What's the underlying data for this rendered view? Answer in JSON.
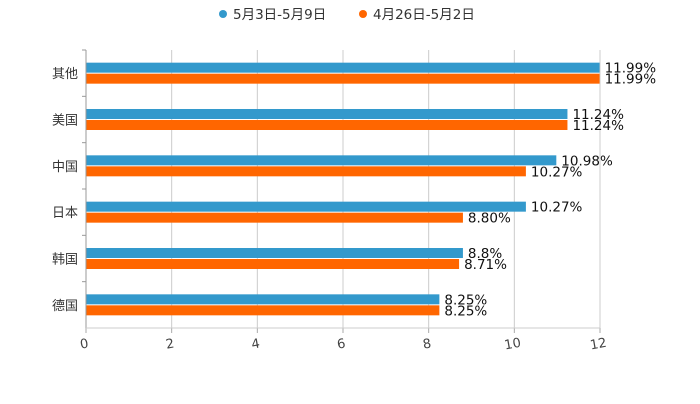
{
  "chart_data": {
    "type": "bar",
    "orientation": "horizontal",
    "categories": [
      "其他",
      "美国",
      "中国",
      "日本",
      "韩国",
      "德国"
    ],
    "series": [
      {
        "name": "5月3日-5月9日",
        "values": [
          11.99,
          11.24,
          10.98,
          10.27,
          8.8,
          8.25
        ],
        "labels": [
          "11.99%",
          "11.24%",
          "10.98%",
          "10.27%",
          "8.8%",
          "8.25%"
        ],
        "color": "#3399cc"
      },
      {
        "name": "4月26日-5月2日",
        "values": [
          11.99,
          11.24,
          10.27,
          8.8,
          8.71,
          8.25
        ],
        "labels": [
          "11.99%",
          "11.24%",
          "10.27%",
          "8.80%",
          "8.71%",
          "8.25%"
        ],
        "color": "#ff6600"
      }
    ],
    "xlim": [
      0,
      12
    ],
    "xticks": [
      "0",
      "2",
      "4",
      "6",
      "8",
      "10",
      "12"
    ],
    "grid": true,
    "legend_position": "top-center",
    "title": "",
    "xlabel": "",
    "ylabel": ""
  }
}
